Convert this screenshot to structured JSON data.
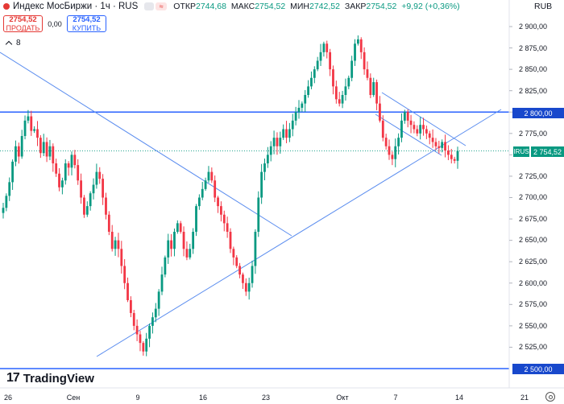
{
  "header": {
    "title": "Индекс МосБиржи · 1ч · RUS",
    "mode_icon": "≈",
    "ohlc": [
      {
        "label": "ОТКР",
        "value": "2744,68"
      },
      {
        "label": "МАКС",
        "value": "2754,52"
      },
      {
        "label": "МИН",
        "value": "2742,52"
      },
      {
        "label": "ЗАКР",
        "value": "2754,52"
      }
    ],
    "change": "+9,92 (+0,36%)",
    "currency": "RUB"
  },
  "trade": {
    "sell_price": "2754,52",
    "sell_label": "ПРОДАТЬ",
    "spread": "0,00",
    "buy_price": "2754,52",
    "buy_label": "КУПИТЬ"
  },
  "indicators": {
    "count": "8"
  },
  "logo": {
    "text": "TradingView",
    "mark": "17"
  },
  "price_scale": {
    "labels": [
      "2 900,00",
      "2 875,00",
      "2 850,00",
      "2 825,00",
      "2 775,00",
      "2 725,00",
      "2 700,00",
      "2 675,00",
      "2 650,00",
      "2 625,00",
      "2 600,00",
      "2 575,00",
      "2 550,00",
      "2 525,00"
    ],
    "level_2800": "2 800,00",
    "level_2500": "2 500,00",
    "current": "2 754,52",
    "symbol_badge": "IRUS"
  },
  "time_axis": [
    "26",
    "Сен",
    "9",
    "16",
    "23",
    "Окт",
    "7",
    "14",
    "21"
  ],
  "colors": {
    "up": "#089981",
    "down": "#f23645",
    "level": "#2962ff",
    "trend": "#5b8def"
  },
  "chart_data": {
    "type": "candlestick",
    "symbol": "IRUS",
    "timeframe": "1h",
    "ylim": [
      2500,
      2910
    ],
    "horizontal_levels": [
      2800,
      2500
    ],
    "last_close": 2754.52,
    "series": [
      {
        "name": "close",
        "values": [
          2688,
          2702,
          2718,
          2742,
          2760,
          2748,
          2772,
          2790,
          2795,
          2778,
          2780,
          2770,
          2752,
          2765,
          2748,
          2760,
          2740,
          2728,
          2712,
          2720,
          2740,
          2735,
          2750,
          2738,
          2720,
          2700,
          2680,
          2690,
          2705,
          2715,
          2730,
          2722,
          2700,
          2680,
          2660,
          2640,
          2650,
          2640,
          2620,
          2600,
          2580,
          2565,
          2550,
          2540,
          2530,
          2520,
          2535,
          2550,
          2560,
          2570,
          2590,
          2610,
          2630,
          2650,
          2640,
          2660,
          2670,
          2660,
          2640,
          2630,
          2640,
          2660,
          2690,
          2700,
          2710,
          2720,
          2730,
          2720,
          2700,
          2690,
          2680,
          2670,
          2660,
          2640,
          2630,
          2620,
          2610,
          2600,
          2590,
          2600,
          2620,
          2660,
          2700,
          2730,
          2740,
          2750,
          2760,
          2770,
          2760,
          2770,
          2780,
          2770,
          2780,
          2790,
          2800,
          2805,
          2810,
          2820,
          2830,
          2840,
          2850,
          2860,
          2870,
          2880,
          2870,
          2850,
          2830,
          2815,
          2810,
          2820,
          2830,
          2840,
          2860,
          2880,
          2885,
          2870,
          2850,
          2840,
          2820,
          2835,
          2810,
          2790,
          2770,
          2760,
          2750,
          2745,
          2760,
          2770,
          2790,
          2800,
          2790,
          2785,
          2780,
          2775,
          2785,
          2780,
          2775,
          2770,
          2765,
          2760,
          2758,
          2765,
          2755,
          2750,
          2745,
          2743,
          2754.52
        ]
      }
    ]
  }
}
